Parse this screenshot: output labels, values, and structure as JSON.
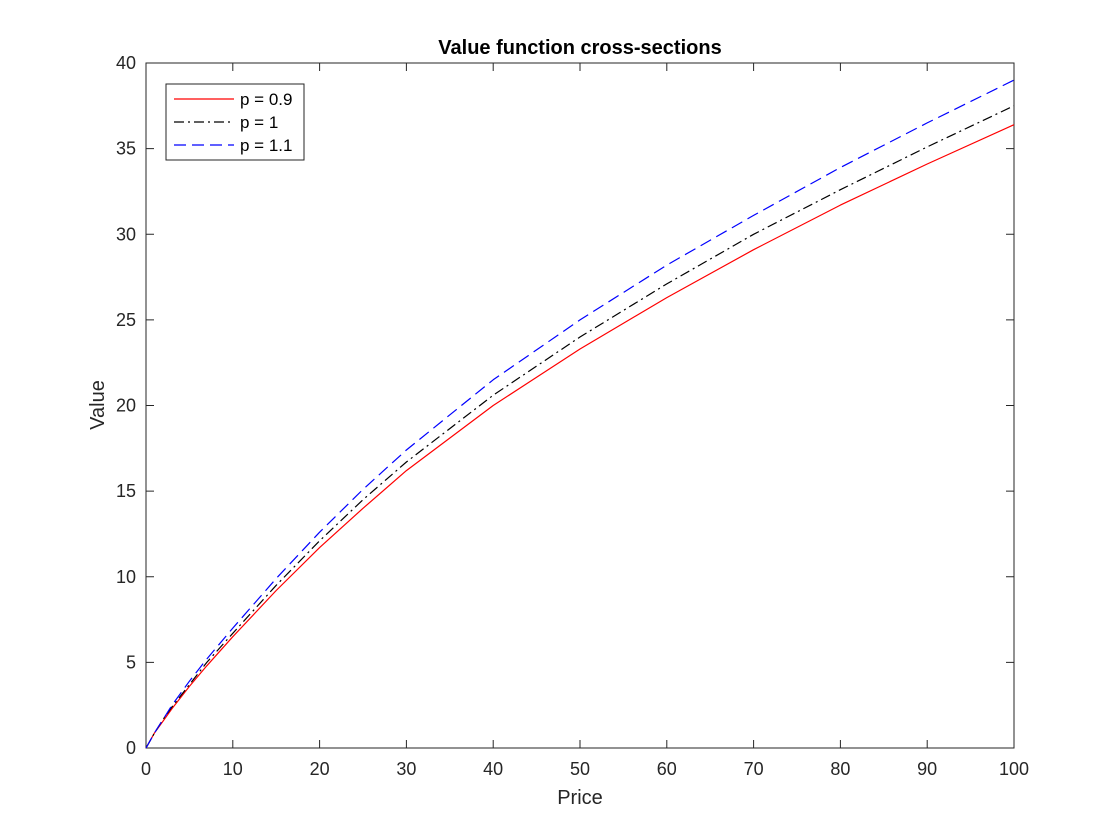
{
  "chart_data": {
    "type": "line",
    "title": "Value function cross-sections",
    "xlabel": "Price",
    "ylabel": "Value",
    "xlim": [
      0,
      100
    ],
    "ylim": [
      0,
      40
    ],
    "xticks": [
      0,
      10,
      20,
      30,
      40,
      50,
      60,
      70,
      80,
      90,
      100
    ],
    "yticks": [
      0,
      5,
      10,
      15,
      20,
      25,
      30,
      35,
      40
    ],
    "grid": false,
    "legend_position": "top-left",
    "x": [
      0,
      1,
      2,
      3,
      5,
      7,
      10,
      15,
      20,
      25,
      30,
      40,
      50,
      60,
      70,
      80,
      90,
      100
    ],
    "series": [
      {
        "name": "p = 0.9",
        "color": "#ff0000",
        "line_style": "solid",
        "values": [
          0,
          0.9,
          1.6,
          2.3,
          3.6,
          4.8,
          6.5,
          9.2,
          11.7,
          14.0,
          16.2,
          20.0,
          23.3,
          26.3,
          29.1,
          31.7,
          34.1,
          36.4
        ]
      },
      {
        "name": "p = 1",
        "color": "#000000",
        "line_style": "dashdot",
        "values": [
          0,
          0.9,
          1.7,
          2.4,
          3.7,
          5.0,
          6.7,
          9.5,
          12.1,
          14.5,
          16.7,
          20.6,
          24.0,
          27.1,
          30.0,
          32.6,
          35.1,
          37.5
        ]
      },
      {
        "name": "p = 1.1",
        "color": "#0000ff",
        "line_style": "dashed",
        "values": [
          0,
          0.9,
          1.7,
          2.5,
          3.9,
          5.2,
          7.0,
          9.9,
          12.6,
          15.1,
          17.4,
          21.5,
          25.0,
          28.2,
          31.1,
          33.9,
          36.5,
          39.0
        ]
      }
    ]
  }
}
